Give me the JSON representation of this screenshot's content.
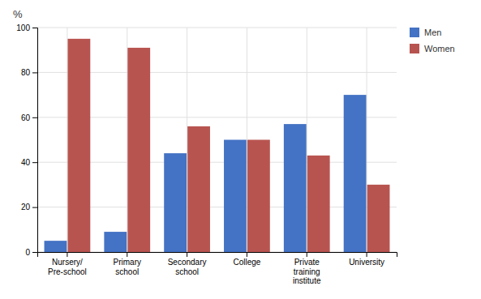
{
  "chart_data": {
    "type": "bar",
    "categories": [
      "Nursery/\nPre-school",
      "Primary\nschool",
      "Secondary\nschool",
      "College",
      "Private\ntraining\ninstitute",
      "University"
    ],
    "series": [
      {
        "name": "Men",
        "color": "#4472C4",
        "values": [
          5,
          9,
          44,
          50,
          57,
          70
        ]
      },
      {
        "name": "Women",
        "color": "#B85450",
        "values": [
          95,
          91,
          56,
          50,
          43,
          30
        ]
      }
    ],
    "ylabel": "%",
    "ylim": [
      0,
      100
    ],
    "yticks": [
      0,
      20,
      40,
      60,
      80,
      100
    ],
    "grid": true,
    "legend": "right"
  }
}
